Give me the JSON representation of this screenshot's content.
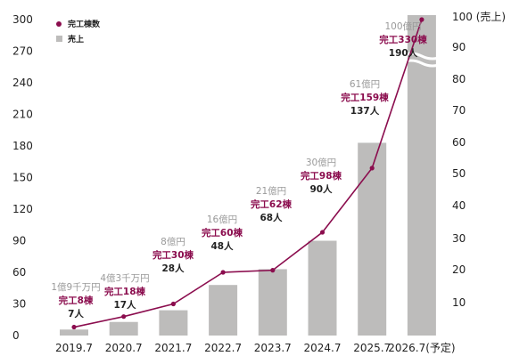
{
  "chart_data": {
    "type": "bar",
    "categories": [
      "2019.7",
      "2020.7",
      "2021.7",
      "2022.7",
      "2023.7",
      "2024.7",
      "2025.7",
      "2026.7(予定)"
    ],
    "series": [
      {
        "name": "売上",
        "kind": "bar",
        "axis": "right",
        "values": [
          1.9,
          4.3,
          8,
          16,
          21,
          30,
          61,
          100
        ],
        "color": "#bdbcbb"
      },
      {
        "name": "完工棟数",
        "kind": "line",
        "axis": "left",
        "values": [
          8,
          18,
          30,
          60,
          62,
          98,
          159,
          330
        ],
        "color": "#8b0d4e"
      }
    ],
    "left_axis": {
      "ticks": [
        0,
        30,
        60,
        90,
        120,
        150,
        180,
        210,
        240,
        270,
        300
      ],
      "range": [
        0,
        300
      ]
    },
    "right_axis": {
      "ticks": [
        "10",
        "20",
        "30",
        "40",
        "50",
        "60",
        "70",
        "80",
        "90",
        "100 (売上)"
      ],
      "range": [
        0,
        100
      ],
      "break_between": [
        90,
        100
      ]
    },
    "annotations": [
      {
        "sales": "1億9千万円",
        "count": "完工8棟",
        "people": "7人"
      },
      {
        "sales": "4億3千万円",
        "count": "完工18棟",
        "people": "17人"
      },
      {
        "sales": "8億円",
        "count": "完工30棟",
        "people": "28人"
      },
      {
        "sales": "16億円",
        "count": "完工60棟",
        "people": "48人"
      },
      {
        "sales": "21億円",
        "count": "完工62棟",
        "people": "68人"
      },
      {
        "sales": "30億円",
        "count": "完工98棟",
        "people": "90人"
      },
      {
        "sales": "61億円",
        "count": "完工159棟",
        "people": "137人"
      },
      {
        "sales": "100億円",
        "count": "完工330棟",
        "people": "190人"
      }
    ],
    "legend": [
      "完工棟数",
      "売上"
    ],
    "legend_position": "top-left",
    "grid": false
  }
}
